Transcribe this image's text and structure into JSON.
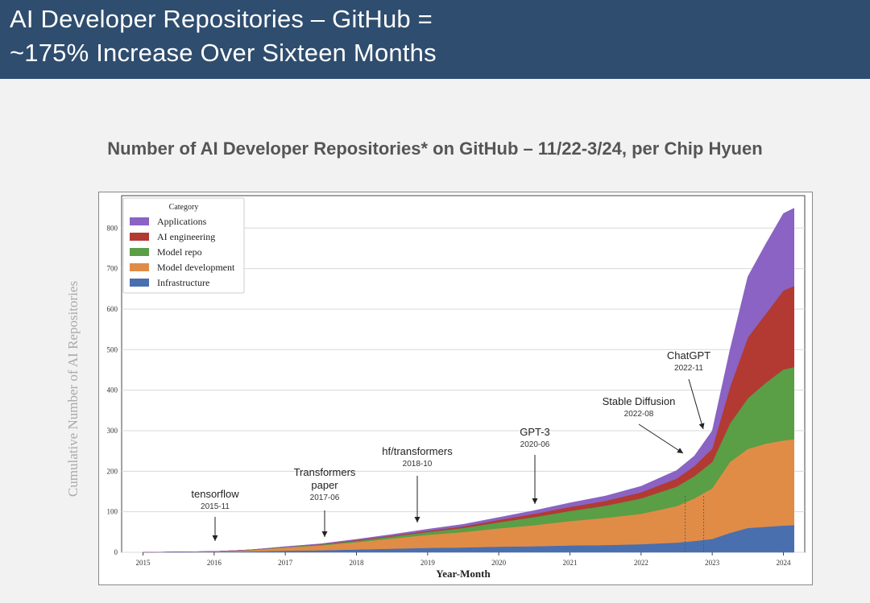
{
  "slide": {
    "title_line1": "AI Developer Repositories – GitHub =",
    "title_line2": "~175% Increase Over Sixteen Months",
    "subtitle": "Number of AI Developer Repositories* on GitHub – 11/22-3/24, per Chip Hyuen"
  },
  "chart_data": {
    "type": "area",
    "stacked": true,
    "title": "",
    "xlabel": "Year-Month",
    "ylabel": "Cumulative Number of AI Repositories",
    "xlim": [
      2014.7,
      2024.3
    ],
    "ylim": [
      0,
      880
    ],
    "x_ticks": [
      "2015",
      "2016",
      "2017",
      "2018",
      "2019",
      "2020",
      "2021",
      "2022",
      "2023",
      "2024"
    ],
    "y_ticks": [
      0,
      100,
      200,
      300,
      400,
      500,
      600,
      700,
      800
    ],
    "grid": true,
    "legend": {
      "title": "Category",
      "placement": "top-left"
    },
    "x": [
      2015.0,
      2016.0,
      2016.5,
      2017.0,
      2017.5,
      2018.0,
      2018.5,
      2019.0,
      2019.5,
      2020.0,
      2020.5,
      2021.0,
      2021.5,
      2022.0,
      2022.5,
      2022.75,
      2023.0,
      2023.25,
      2023.5,
      2023.75,
      2024.0,
      2024.15
    ],
    "series": [
      {
        "name": "Infrastructure",
        "color": "#4a6fae",
        "values": [
          0,
          1,
          2,
          4,
          5,
          7,
          9,
          11,
          12,
          14,
          15,
          17,
          18,
          20,
          24,
          28,
          33,
          48,
          60,
          63,
          66,
          67
        ]
      },
      {
        "name": "Model development",
        "color": "#e08c47",
        "values": [
          0,
          1,
          3,
          8,
          12,
          18,
          25,
          32,
          38,
          45,
          52,
          60,
          67,
          75,
          90,
          105,
          125,
          175,
          195,
          205,
          210,
          212
        ]
      },
      {
        "name": "Model repo",
        "color": "#5a9e45",
        "values": [
          0,
          0,
          1,
          1,
          2,
          3,
          5,
          7,
          10,
          15,
          20,
          25,
          30,
          38,
          48,
          55,
          65,
          95,
          125,
          150,
          175,
          178
        ]
      },
      {
        "name": "AI engineering",
        "color": "#b23a32",
        "values": [
          0,
          0,
          0,
          0,
          1,
          2,
          2,
          3,
          4,
          6,
          8,
          10,
          12,
          15,
          20,
          25,
          33,
          90,
          150,
          170,
          195,
          200
        ]
      },
      {
        "name": "Applications",
        "color": "#8a63c4",
        "values": [
          0,
          0,
          0,
          1,
          1,
          2,
          3,
          4,
          5,
          6,
          8,
          10,
          12,
          15,
          20,
          25,
          44,
          92,
          150,
          172,
          190,
          192
        ]
      }
    ],
    "annotations": [
      {
        "label": "tensorflow",
        "date": "2015-11",
        "x": 2015.92
      },
      {
        "label": "Transformers\npaper",
        "date": "2017-06",
        "x": 2017.46
      },
      {
        "label": "hf/transformers",
        "date": "2018-10",
        "x": 2018.79
      },
      {
        "label": "GPT-3",
        "date": "2020-06",
        "x": 2020.46
      },
      {
        "label": "Stable Diffusion",
        "date": "2022-08",
        "x": 2022.62
      },
      {
        "label": "ChatGPT",
        "date": "2022-11",
        "x": 2022.88
      }
    ]
  }
}
